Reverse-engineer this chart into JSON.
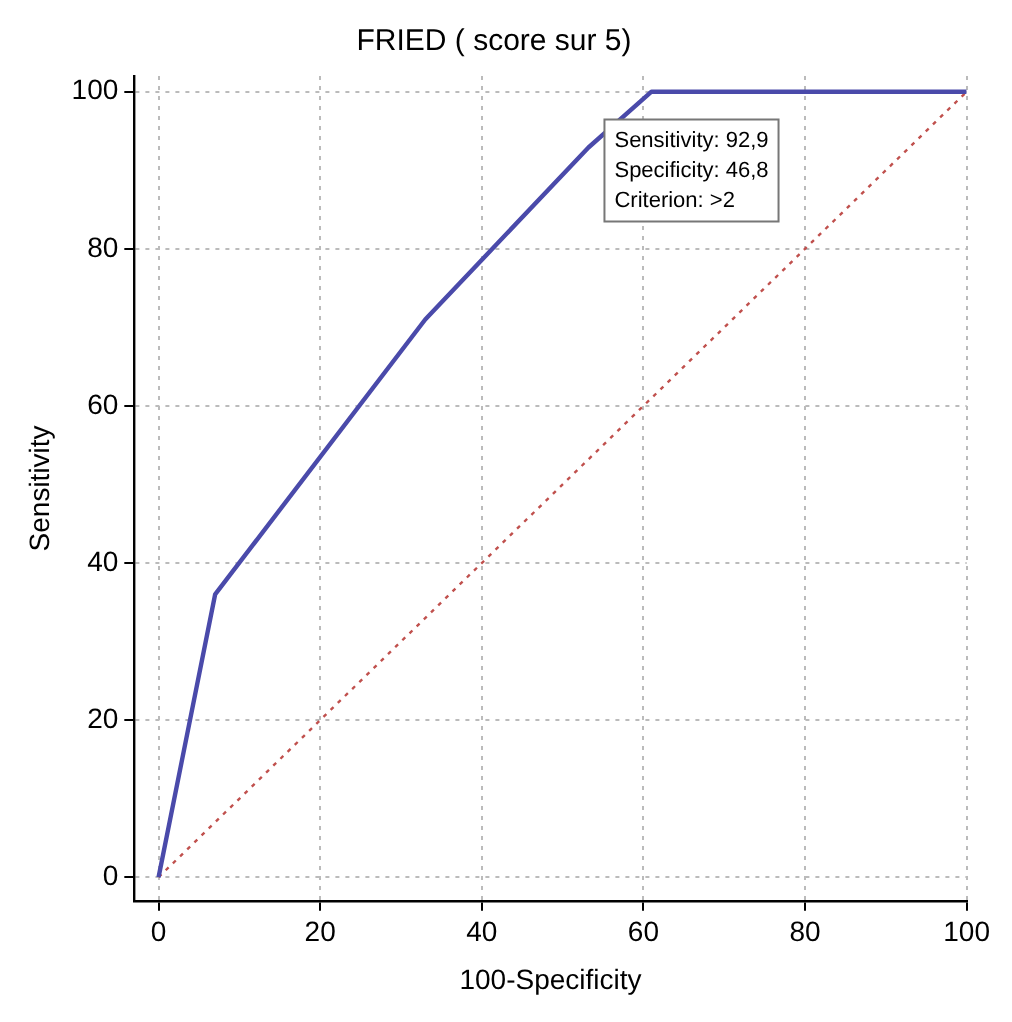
{
  "chart_data": {
    "type": "line",
    "title": "FRIED ( score sur 5)",
    "xlabel": "100-Specificity",
    "ylabel": "Sensitivity",
    "xlim": [
      -3,
      100
    ],
    "ylim": [
      -3,
      102
    ],
    "xticks": [
      0,
      20,
      40,
      60,
      80,
      100
    ],
    "yticks": [
      0,
      20,
      40,
      60,
      80,
      100
    ],
    "grid": true,
    "legend": false,
    "marker": "none",
    "series": [
      {
        "color": "#4a4aaa",
        "x": [
          0,
          7,
          33,
          53.2,
          61,
          100
        ],
        "values": [
          0,
          36,
          71,
          92.9,
          100,
          100
        ],
        "line_style": "solid"
      },
      {
        "color": "#c0504d",
        "x": [
          0,
          100
        ],
        "values": [
          0,
          100
        ],
        "line_style": "dotted"
      }
    ],
    "annotations": [
      "Sensitivity: 92,9",
      "Specificity: 46,8",
      "Criterion: >2"
    ]
  }
}
